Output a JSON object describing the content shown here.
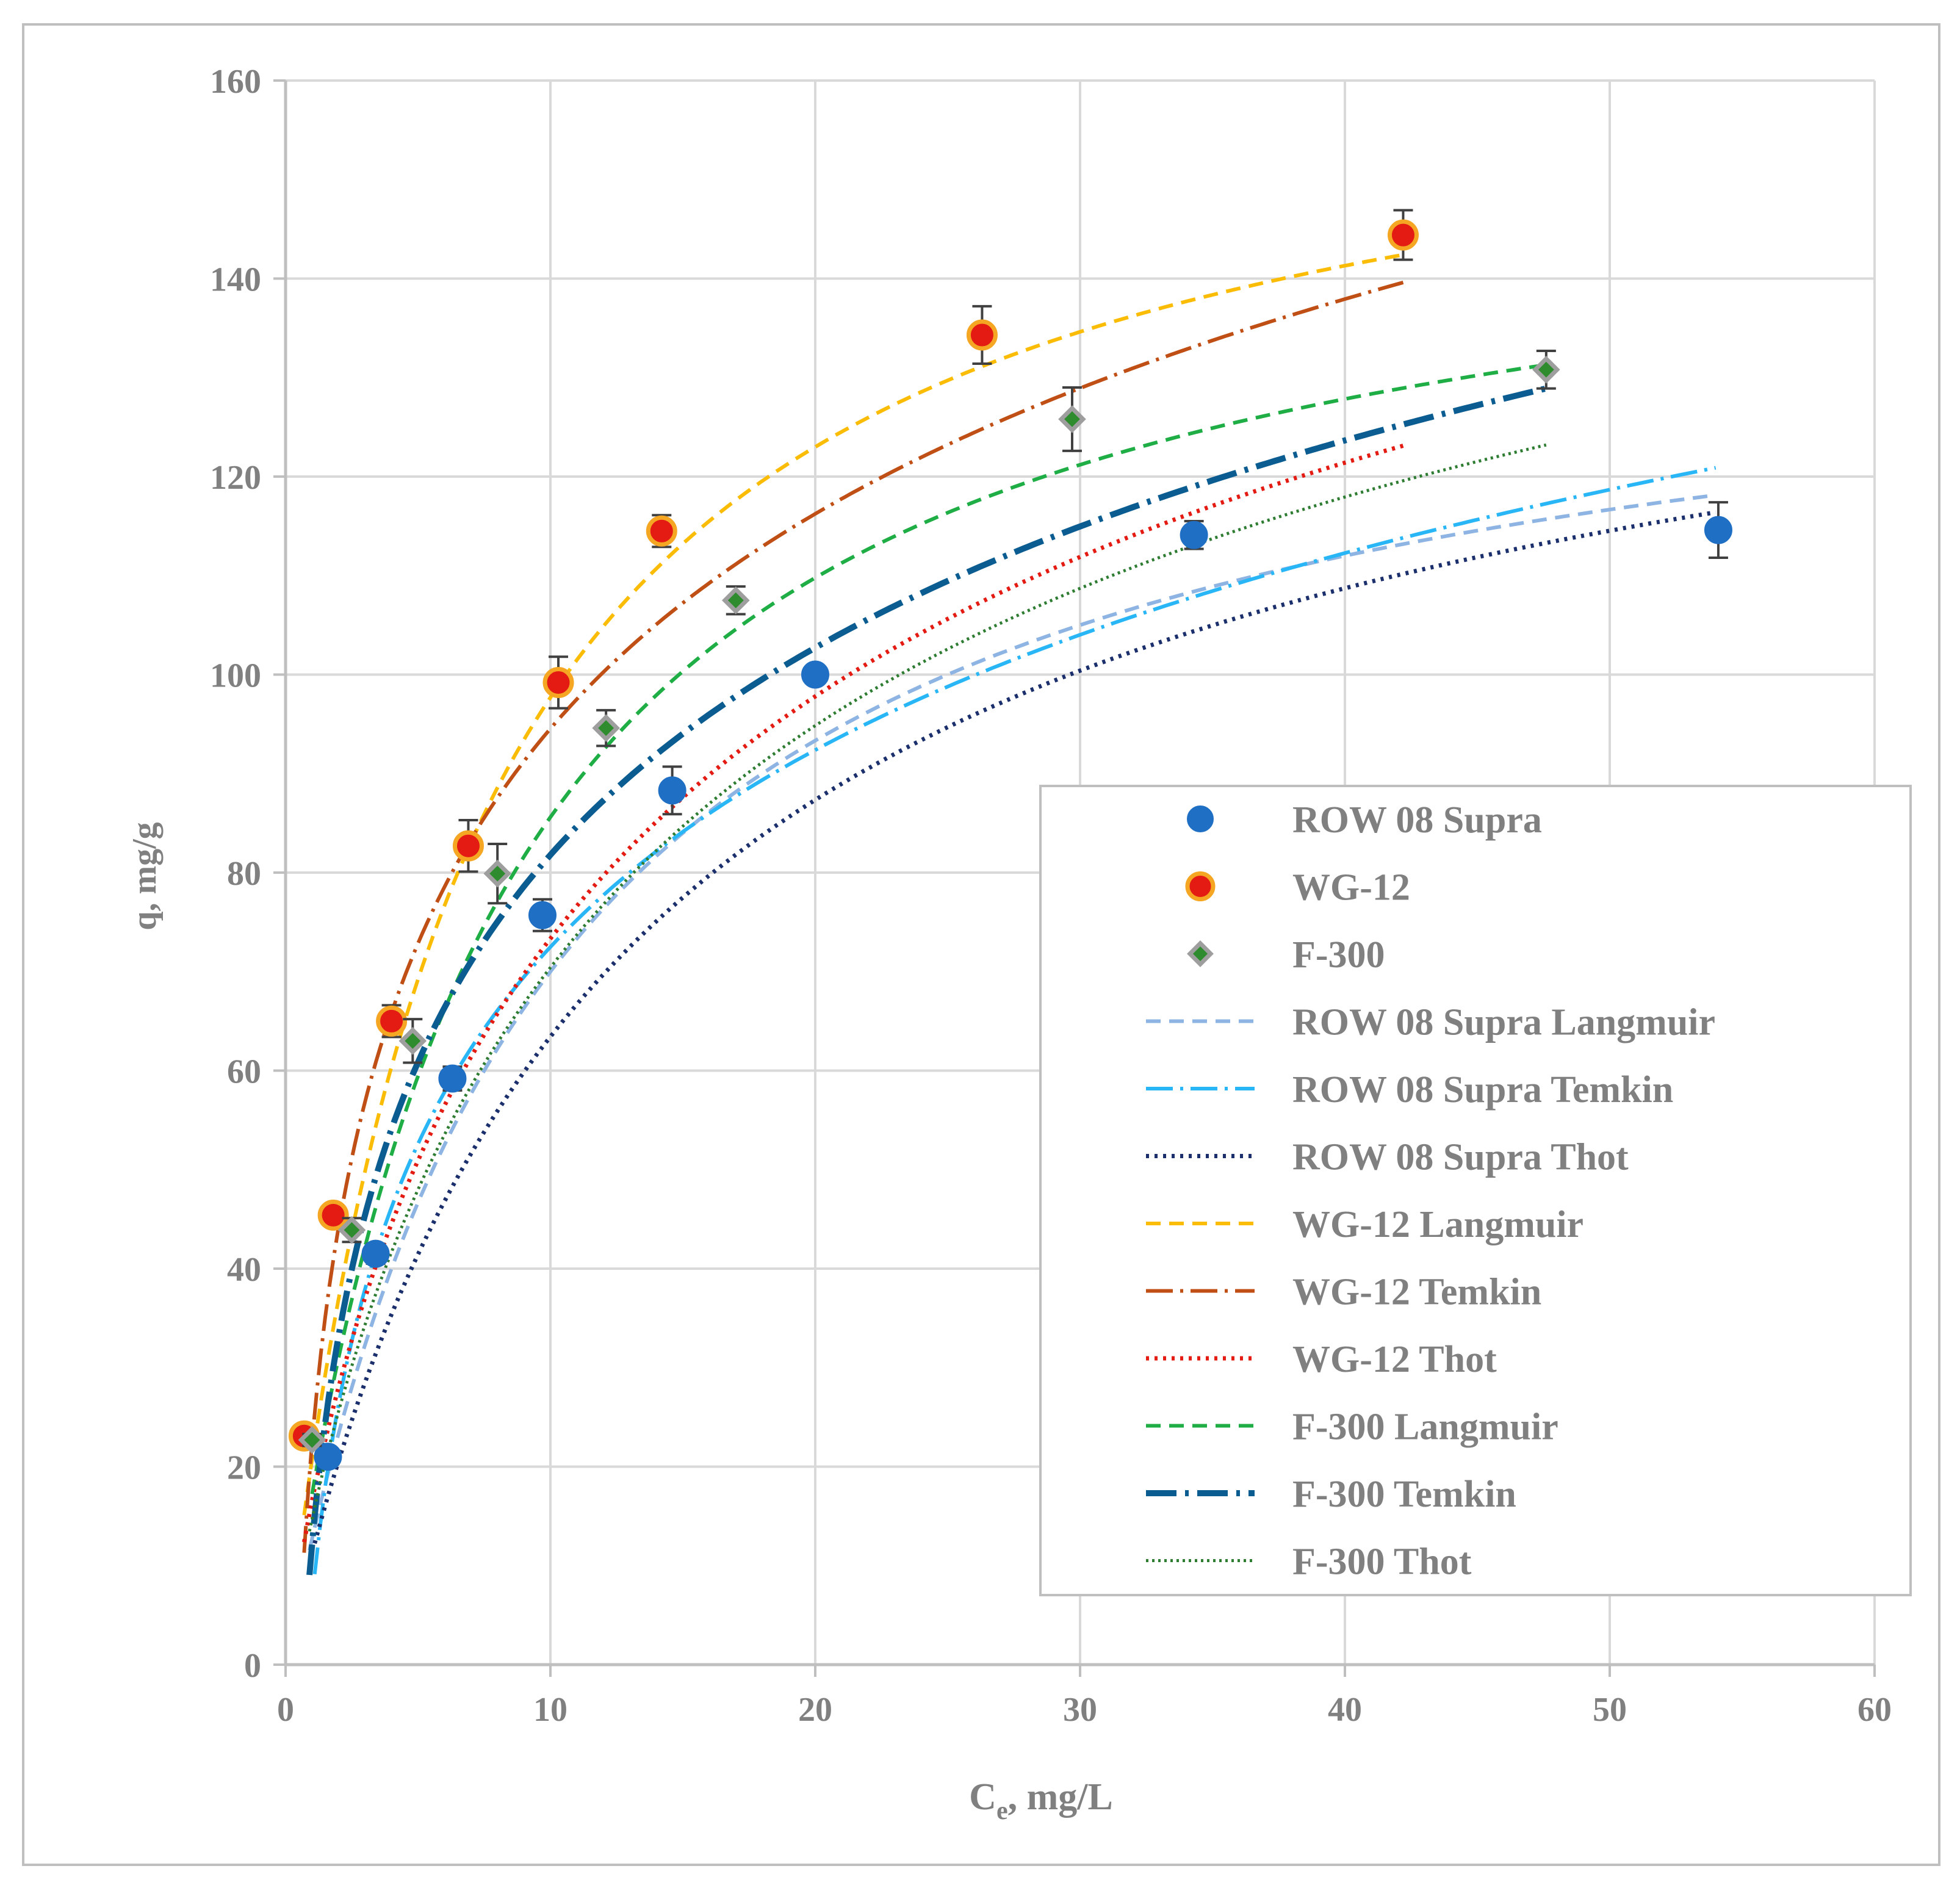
{
  "chart_data": {
    "type": "scatter",
    "xlabel": "C",
    "xlabel_sub": "e",
    "xlabel_suffix": ", mg/L",
    "ylabel": "q, mg/g",
    "xlim": [
      0,
      60
    ],
    "ylim": [
      0,
      160
    ],
    "xticks": [
      0,
      10,
      20,
      30,
      40,
      50,
      60
    ],
    "yticks": [
      0,
      20,
      40,
      60,
      80,
      100,
      120,
      140,
      160
    ],
    "grid": true,
    "legend_position": "right",
    "series": [
      {
        "name": "ROW 08 Supra",
        "kind": "marker",
        "marker": "circle",
        "color": "#1f6fc4",
        "edge": "#1f6fc4",
        "x": [
          1.6,
          3.4,
          6.3,
          9.7,
          14.6,
          20.0,
          34.3,
          54.1
        ],
        "y": [
          21.0,
          41.5,
          59.2,
          75.7,
          88.3,
          100.0,
          114.1,
          114.6
        ],
        "err": [
          0.8,
          1.0,
          1.2,
          1.6,
          2.4,
          0.9,
          1.4,
          2.8
        ]
      },
      {
        "name": "WG-12",
        "kind": "marker",
        "marker": "circle",
        "color": "#e31b12",
        "edge": "#f5a623",
        "x": [
          0.7,
          1.8,
          4.0,
          6.9,
          10.3,
          14.2,
          26.3,
          42.2
        ],
        "y": [
          23.1,
          45.4,
          65.0,
          82.7,
          99.2,
          114.5,
          134.3,
          144.4
        ],
        "err": [
          1.0,
          1.0,
          1.6,
          2.6,
          2.6,
          1.6,
          2.9,
          2.5
        ]
      },
      {
        "name": "F-300",
        "kind": "marker",
        "marker": "diamond",
        "color": "#2e8b2e",
        "edge": "#9e9e9e",
        "x": [
          1.0,
          2.5,
          4.8,
          8.0,
          12.1,
          17.0,
          29.7,
          47.6
        ],
        "y": [
          22.7,
          43.9,
          63.0,
          79.9,
          94.6,
          107.5,
          125.8,
          130.8
        ],
        "err": [
          0.6,
          1.2,
          2.2,
          3.0,
          1.8,
          1.4,
          3.2,
          1.9
        ]
      },
      {
        "name": "ROW 08 Supra Langmuir",
        "kind": "line",
        "model": "langmuir",
        "params": {
          "qm": 140,
          "k": 0.1
        },
        "x_range": [
          0.9,
          54
        ],
        "color": "#8eb4e3",
        "dash": "24,14",
        "width": 6
      },
      {
        "name": "ROW 08 Supra Temkin",
        "kind": "line",
        "model": "temkin",
        "params": {
          "b": 28.7,
          "k": 1.25
        },
        "x_range": [
          1.1,
          54
        ],
        "color": "#29b6f6",
        "dash": "44,12,5,12",
        "width": 6
      },
      {
        "name": "ROW 08 Supra Thot",
        "kind": "line",
        "model": "toth",
        "params": {
          "qm": 150,
          "k": 0.084,
          "t": 0.9
        },
        "x_range": [
          1.1,
          54
        ],
        "color": "#1a2f6b",
        "dash": "5,9",
        "width": 7
      },
      {
        "name": "WG-12 Langmuir",
        "kind": "line",
        "model": "langmuir",
        "params": {
          "qm": 166,
          "k": 0.143
        },
        "x_range": [
          0.7,
          42.2
        ],
        "color": "#fbbc05",
        "dash": "24,14",
        "width": 6
      },
      {
        "name": "WG-12 Temkin",
        "kind": "line",
        "model": "temkin",
        "params": {
          "b": 31.3,
          "k": 2.05
        },
        "x_range": [
          0.7,
          42.2
        ],
        "color": "#c04f15",
        "dash": "44,12,5,12",
        "width": 6
      },
      {
        "name": "WG-12 Thot",
        "kind": "line",
        "model": "toth",
        "params": {
          "qm": 195,
          "k": 0.12,
          "t": 0.65
        },
        "x_range": [
          0.7,
          42.2
        ],
        "color": "#e31b12",
        "dash": "5,9",
        "width": 7
      },
      {
        "name": "F-300 Langmuir",
        "kind": "line",
        "model": "langmuir",
        "params": {
          "qm": 153,
          "k": 0.127
        },
        "x_range": [
          1.0,
          47.6
        ],
        "color": "#1fae45",
        "dash": "24,14",
        "width": 6
      },
      {
        "name": "F-300 Temkin",
        "kind": "line",
        "model": "temkin",
        "params": {
          "b": 30.2,
          "k": 1.5
        },
        "x_range": [
          0.9,
          47.6
        ],
        "color": "#0b5c91",
        "dash": "50,14,6,14",
        "width": 10
      },
      {
        "name": "F-300 Thot",
        "kind": "line",
        "model": "toth",
        "params": {
          "qm": 180,
          "k": 0.105,
          "t": 0.72
        },
        "x_range": [
          0.9,
          47.6
        ],
        "color": "#2e7d32",
        "dash": "4,6",
        "width": 5
      }
    ]
  }
}
